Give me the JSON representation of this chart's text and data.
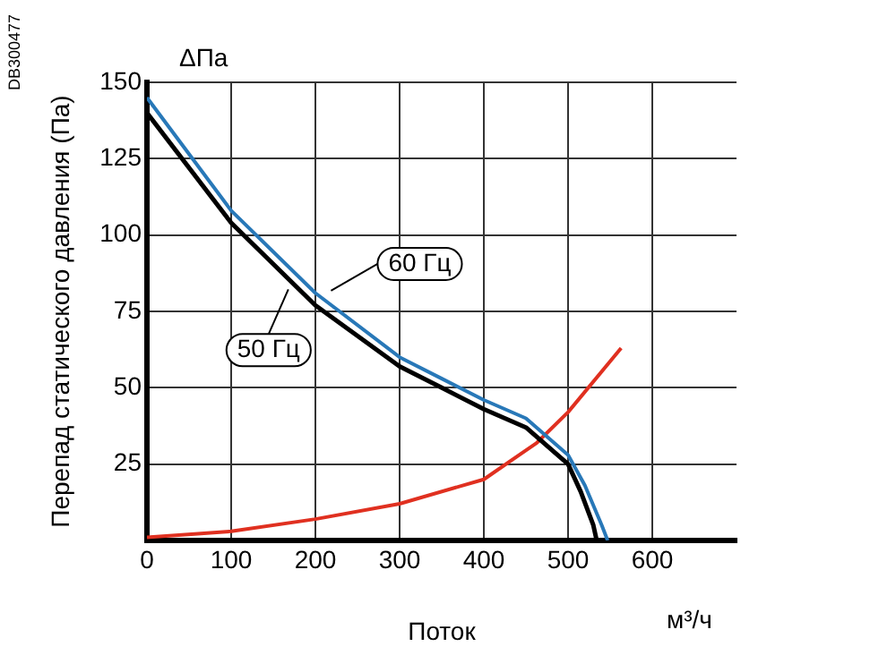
{
  "chart_data": {
    "type": "line",
    "xlabel": "Поток",
    "ylabel": "Перепад статического давления (Па)",
    "annotations": [
      "ΔПа",
      "м³/ч",
      "DB300477",
      {
        "text": "60 Гц",
        "x": 210,
        "y": 80
      },
      {
        "text": "50 Гц",
        "x": 170,
        "y": 84
      }
    ],
    "xlim": [
      0,
      700
    ],
    "xticks": [
      0,
      100,
      200,
      300,
      400,
      500,
      600
    ],
    "ylim": [
      0,
      150
    ],
    "yticks": [
      25,
      50,
      75,
      100,
      125,
      150
    ],
    "grid": true,
    "legend": false,
    "marker": "none",
    "line_style": "solid",
    "series": [
      {
        "color": "#2878b8",
        "x": [
          0,
          100,
          200,
          300,
          350,
          400,
          450,
          500,
          520,
          540,
          547
        ],
        "values": [
          145,
          108,
          81,
          60,
          53,
          46,
          40,
          28,
          18,
          5,
          0
        ]
      },
      {
        "color": "#000000",
        "x": [
          0,
          100,
          200,
          300,
          350,
          400,
          450,
          500,
          515,
          530,
          534
        ],
        "values": [
          140,
          104,
          77,
          57,
          50,
          43,
          37,
          25,
          16,
          5,
          0
        ]
      },
      {
        "color": "#e03020",
        "x": [
          0,
          100,
          200,
          300,
          400,
          463,
          500,
          563
        ],
        "values": [
          1,
          3,
          7,
          12,
          20,
          32,
          42,
          63
        ]
      }
    ]
  }
}
